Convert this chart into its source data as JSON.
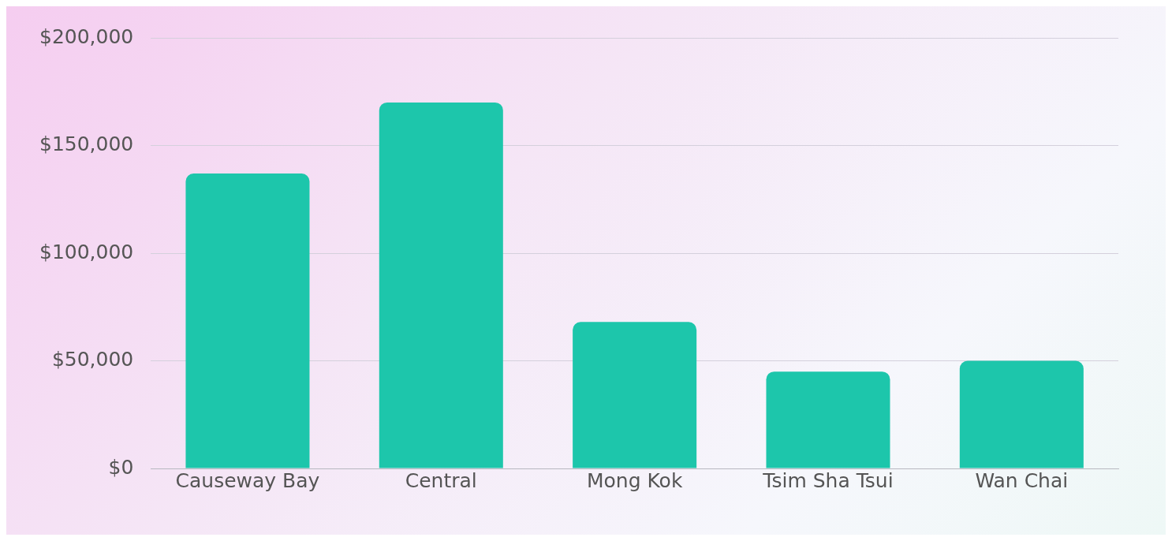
{
  "chart_data": {
    "type": "bar",
    "categories": [
      "Causeway Bay",
      "Central",
      "Mong Kok",
      "Tsim Sha Tsui",
      "Wan Chai"
    ],
    "values": [
      137000,
      170000,
      68000,
      45000,
      50000
    ],
    "color": "#1dc6ab",
    "ylim": [
      0,
      200000
    ],
    "yticks": [
      {
        "value": 0,
        "label": "$0"
      },
      {
        "value": 50000,
        "label": "$50,000"
      },
      {
        "value": 100000,
        "label": "$100,000"
      },
      {
        "value": 150000,
        "label": "$150,000"
      },
      {
        "value": 200000,
        "label": "$200,000"
      }
    ],
    "grid": "y"
  }
}
